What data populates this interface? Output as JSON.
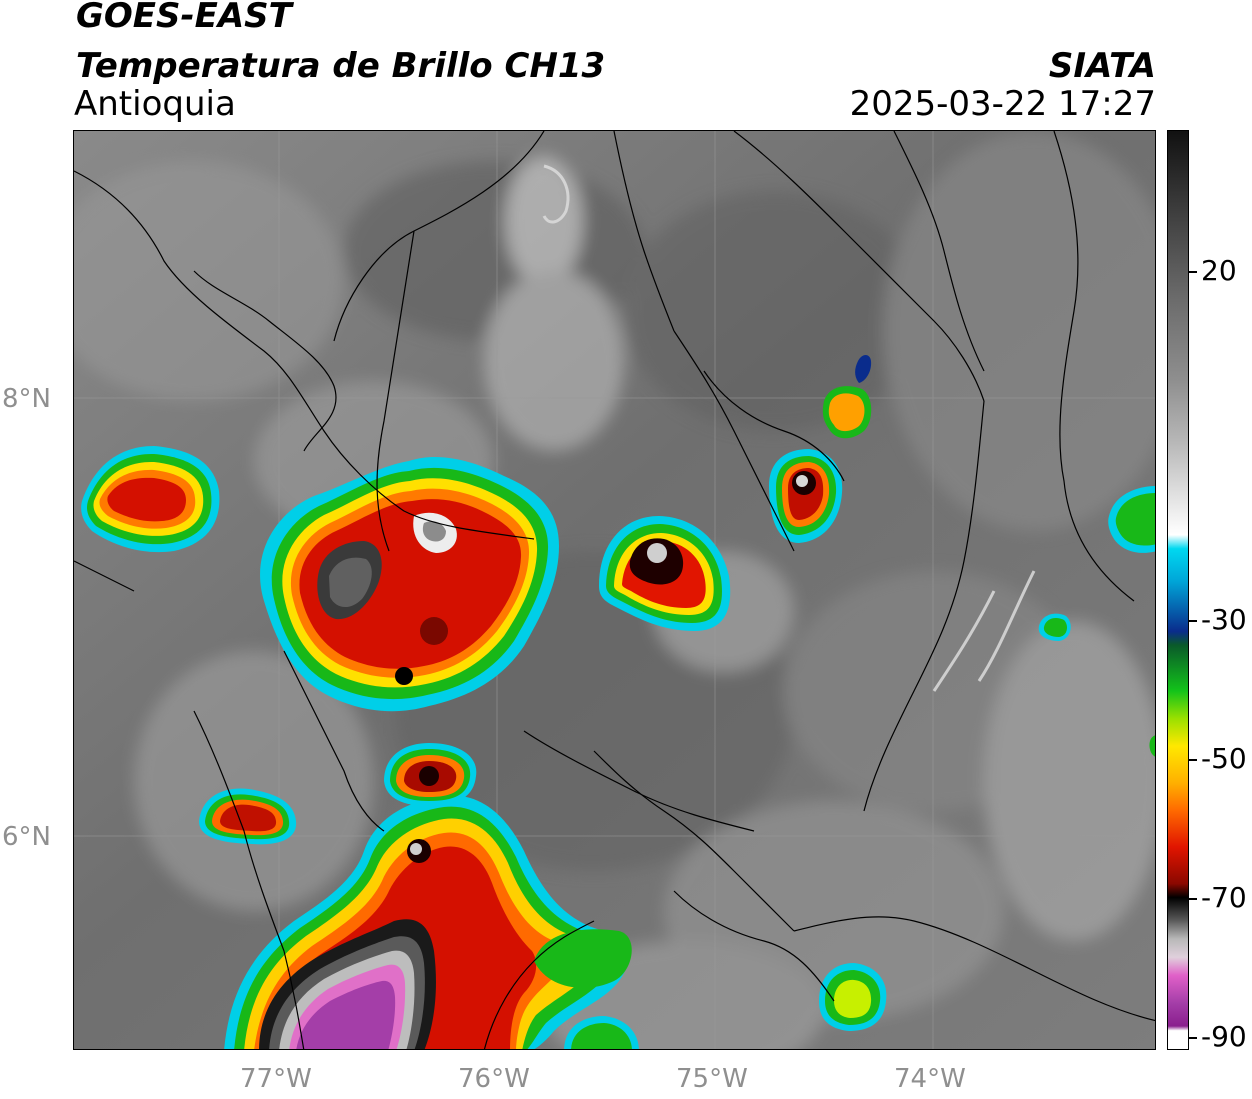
{
  "header": {
    "satellite": "GOES-EAST",
    "product": "Temperatura de Brillo CH13",
    "region": "Antioquia",
    "organization": "SIATA",
    "datetime": "2025-03-22 17:27"
  },
  "map": {
    "lat_labels": [
      "8°N",
      "6°N"
    ],
    "lon_labels": [
      "77°W",
      "76°W",
      "75°W",
      "74°W"
    ]
  },
  "colorbar": {
    "labels": [
      "20",
      "-30",
      "-50",
      "-70",
      "-90"
    ],
    "colors": {
      "warm_gray_dark": "#2f2f2f",
      "warm_gray_light": "#9a9a9a",
      "white": "#ffffff",
      "cyan": "#00d8f0",
      "blue": "#0a2c8c",
      "green": "#13c31a",
      "yellow": "#ffe800",
      "orange": "#ff8a00",
      "red": "#e11500",
      "dark_red": "#5a0600",
      "black": "#000000",
      "light_gray": "#dcdcdc",
      "magenta": "#e060c8",
      "purple": "#8a1f8e"
    }
  }
}
